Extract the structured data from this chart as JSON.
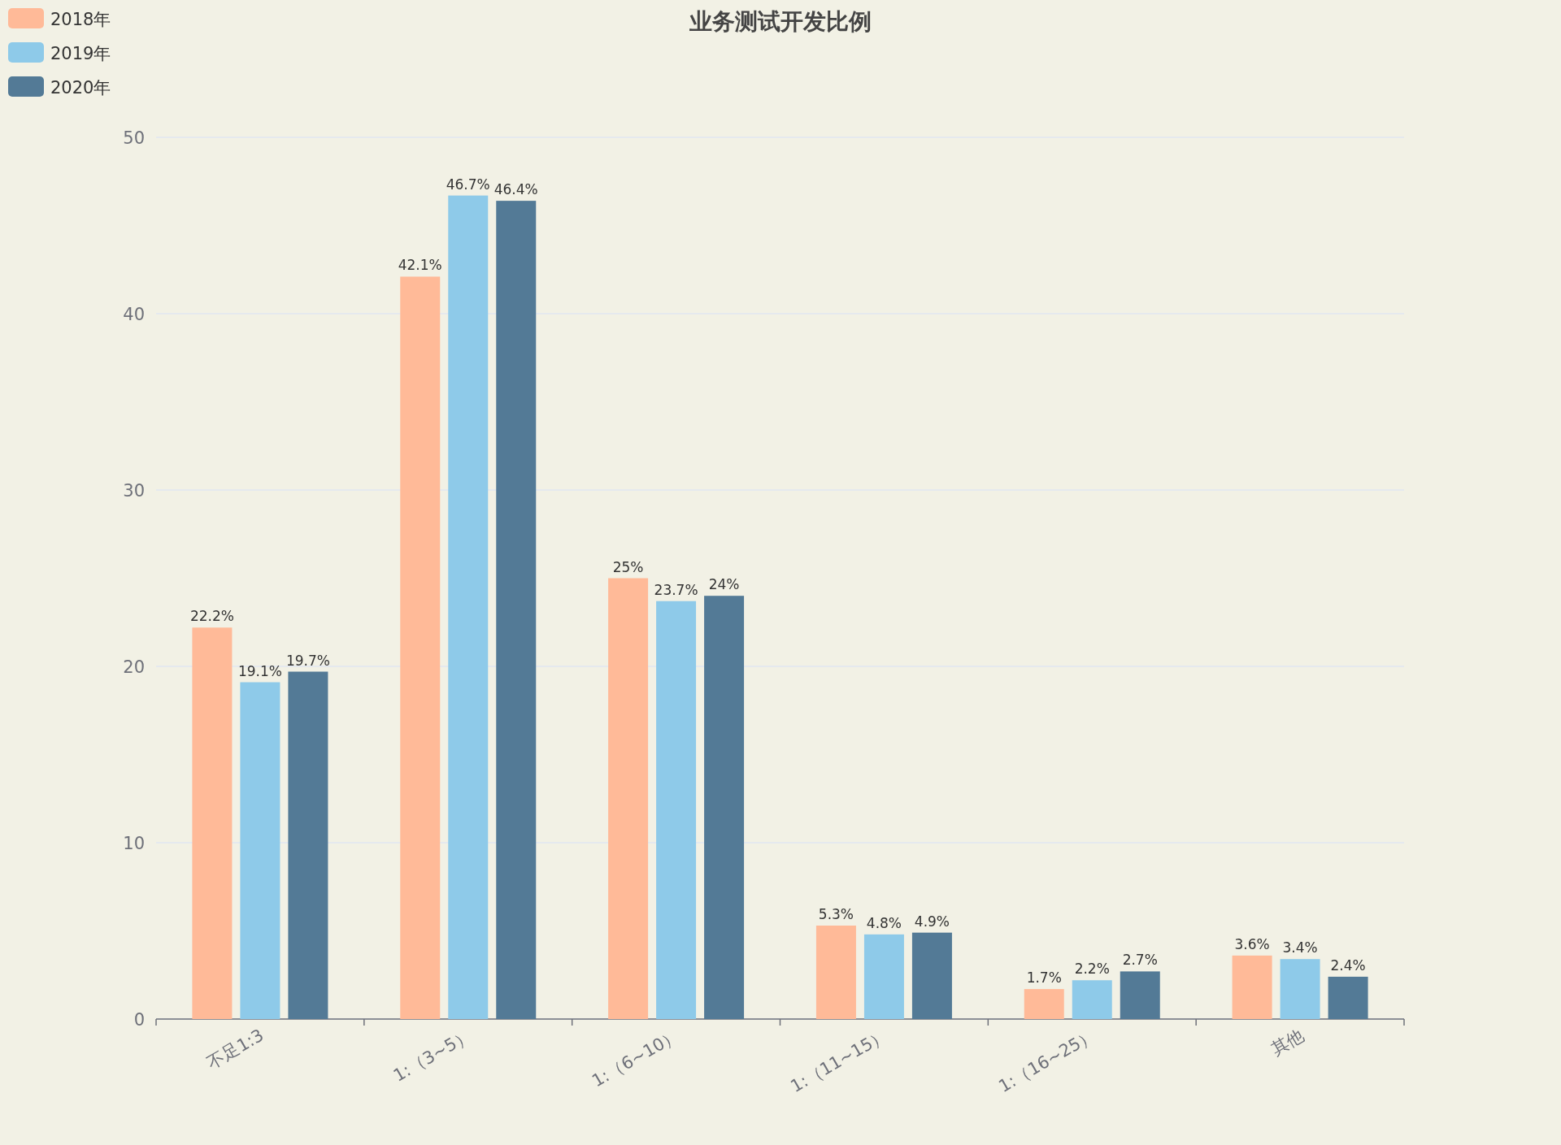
{
  "chart_data": {
    "type": "bar",
    "title": "业务测试开发比例",
    "categories": [
      "不足1:3",
      "1:（3~5）",
      "1:（6~10）",
      "1:（11~15）",
      "1:（16~25）",
      "其他"
    ],
    "series": [
      {
        "name": "2018年",
        "color": "#ffba98",
        "values": [
          22.2,
          42.1,
          25,
          5.3,
          1.7,
          3.6
        ],
        "value_labels": [
          "22.2%",
          "42.1%",
          "25%",
          "5.3%",
          "1.7%",
          "3.6%"
        ]
      },
      {
        "name": "2019年",
        "color": "#8ecae9",
        "values": [
          19.1,
          46.7,
          23.7,
          4.8,
          2.2,
          3.4
        ],
        "value_labels": [
          "19.1%",
          "46.7%",
          "23.7%",
          "4.8%",
          "2.2%",
          "3.4%"
        ]
      },
      {
        "name": "2020年",
        "color": "#537a96",
        "values": [
          19.7,
          46.4,
          24,
          4.9,
          2.7,
          2.4
        ],
        "value_labels": [
          "19.7%",
          "46.4%",
          "24%",
          "4.9%",
          "2.7%",
          "2.4%"
        ]
      }
    ],
    "ylim": [
      0,
      50
    ],
    "yticks": [
      0,
      10,
      20,
      30,
      40,
      50
    ],
    "grid": "y",
    "legend": "top left"
  }
}
